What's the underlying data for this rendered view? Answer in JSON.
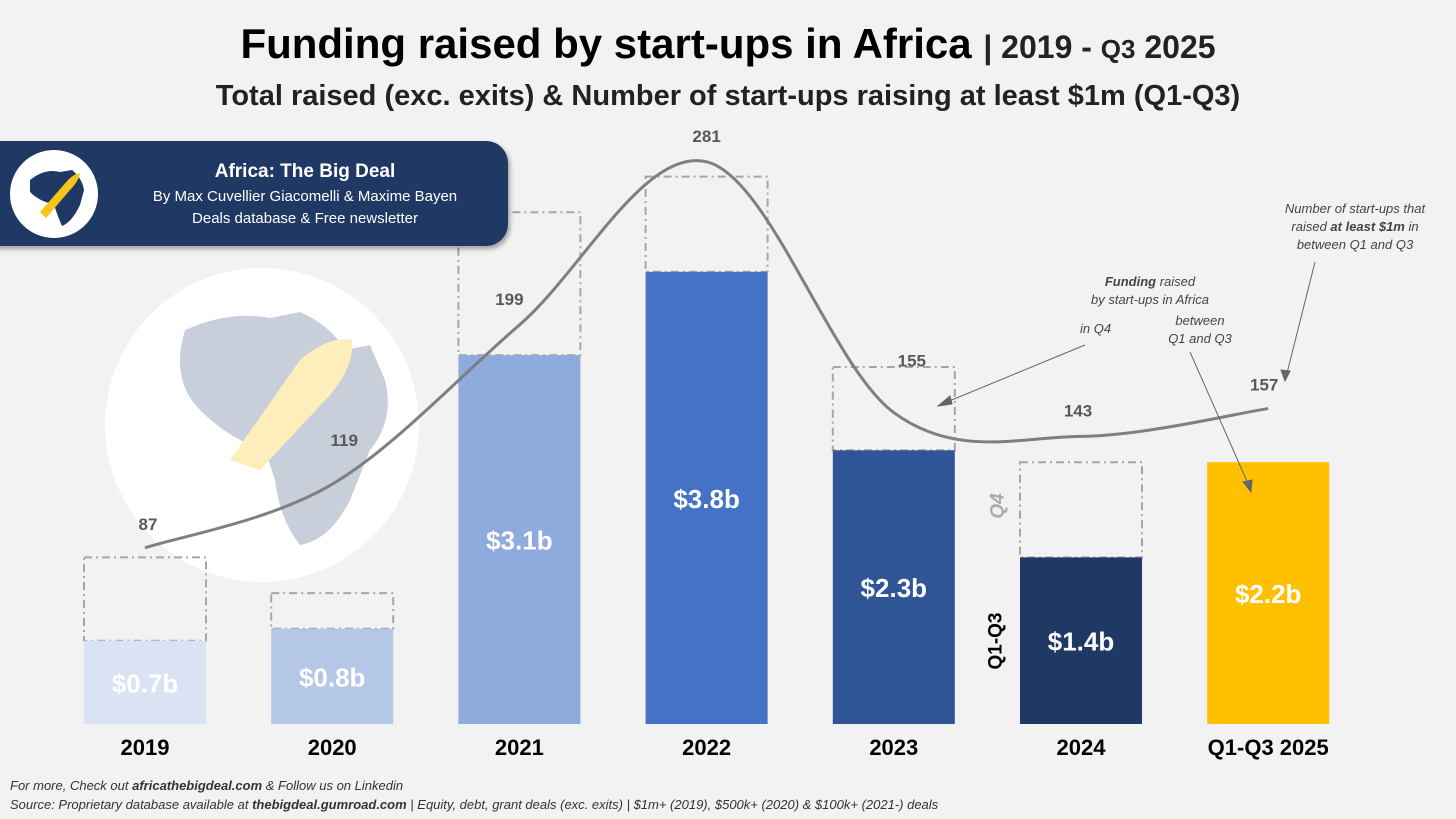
{
  "header": {
    "title": "Funding raised by start-ups in Africa",
    "title_range": "| 2019 - ",
    "title_q": "Q3",
    "title_year": "2025",
    "subtitle": "Total raised (exc. exits) & Number of start-ups raising at least $1m (Q1-Q3)"
  },
  "brand": {
    "name": "Africa: The Big Deal",
    "authors": "By Max Cuvellier Giacomelli & Maxime Bayen",
    "tagline": "Deals database & Free newsletter",
    "logo_icon": "africa-rocket-icon"
  },
  "annotations": {
    "count_note": [
      "Number of start-ups that",
      "raised ",
      "at least $1m",
      " in",
      "between Q1 and Q3"
    ],
    "funding_bold": "Funding",
    "funding_rest": " raised",
    "funding_line2": "by start-ups in Africa",
    "in_q4": "in Q4",
    "between": "between",
    "q1q3": "Q1 and Q3",
    "q4_label": "Q4",
    "q1q3_label": "Q1-Q3"
  },
  "footer": {
    "line1_pre": "For more, Check out ",
    "line1_bold": "africathebigdeal.com",
    "line1_post": " & Follow us on Linkedin",
    "line2_pre": "Source: Proprietary database available at ",
    "line2_bold": "thebigdeal.gumroad.com",
    "line2_post": " | Equity, debt, grant deals (exc. exits) | $1m+ (2019), $500k+ (2020) & $100k+ (2021-) deals"
  },
  "chart_data": {
    "type": "bar",
    "title": "Funding raised by start-ups in Africa | 2019 - Q3 2025",
    "categories": [
      "2019",
      "2020",
      "2021",
      "2022",
      "2023",
      "2024",
      "Q1-Q3 2025"
    ],
    "series": [
      {
        "name": "Funding Q1-Q3 ($b)",
        "values": [
          0.7,
          0.8,
          3.1,
          3.8,
          2.3,
          1.4,
          2.2
        ],
        "labels": [
          "$0.7b",
          "$0.8b",
          "$3.1b",
          "$3.8b",
          "$2.3b",
          "$1.4b",
          "$2.2b"
        ]
      },
      {
        "name": "Funding full year incl. Q4 ($b, est.)",
        "values": [
          1.4,
          1.1,
          4.3,
          4.6,
          3.0,
          2.2,
          null
        ]
      },
      {
        "name": "Start-ups raising at least $1m (Q1-Q3)",
        "type": "line",
        "values": [
          87,
          119,
          199,
          281,
          155,
          143,
          157
        ]
      }
    ],
    "colors": [
      "#dae3f3",
      "#b4c7e7",
      "#8faadc",
      "#4472c4",
      "#2f5597",
      "#1f3864",
      "#ffc000"
    ],
    "line_color": "#7f7f7f",
    "ylim": [
      0,
      4.8
    ]
  }
}
